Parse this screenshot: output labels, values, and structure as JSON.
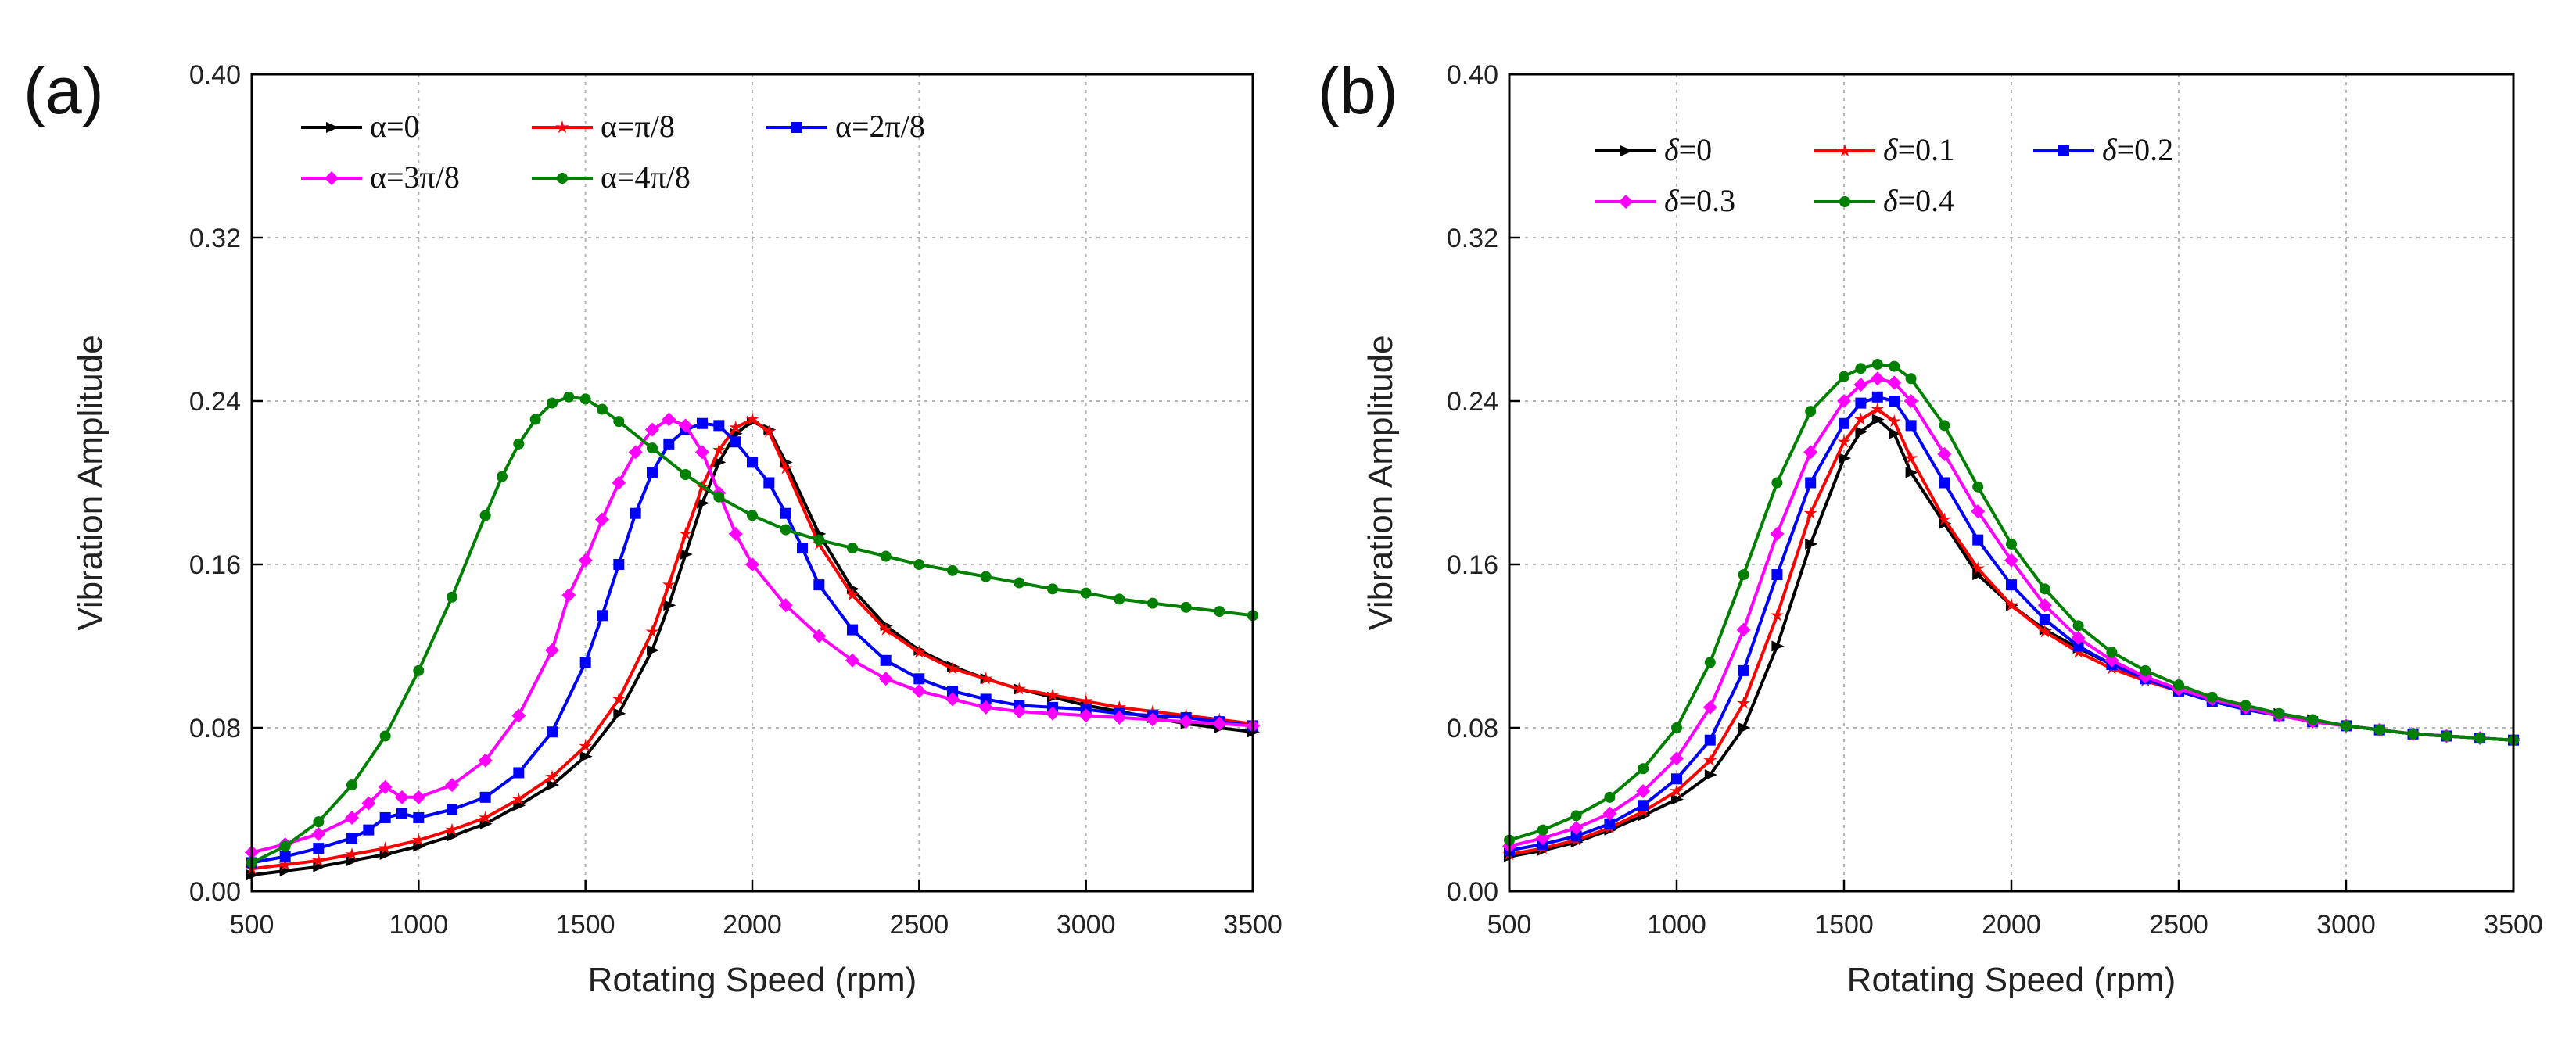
{
  "chart_data": [
    {
      "type": "line",
      "panel_label": "(a)",
      "xlabel": "Rotating Speed (rpm)",
      "ylabel": "Vibration Amplitude",
      "xlim": [
        500,
        3500
      ],
      "ylim": [
        0,
        0.4
      ],
      "xticks": [
        "500",
        "1000",
        "1500",
        "2000",
        "2500",
        "3000",
        "3500"
      ],
      "yticks": [
        "0.00",
        "0.08",
        "0.16",
        "0.24",
        "0.32",
        "0.40"
      ],
      "grid": true,
      "legend_position": "top-left",
      "series": [
        {
          "name": "α=0",
          "prefix": "α",
          "suffix": "=0",
          "color": "#000000",
          "marker": "triangle-right",
          "x": [
            500,
            600,
            700,
            800,
            900,
            1000,
            1100,
            1200,
            1300,
            1400,
            1500,
            1600,
            1700,
            1750,
            1800,
            1850,
            1900,
            1950,
            2000,
            2050,
            2100,
            2200,
            2300,
            2400,
            2500,
            2600,
            2700,
            2800,
            2900,
            3000,
            3100,
            3200,
            3300,
            3400,
            3500
          ],
          "y": [
            0.008,
            0.01,
            0.012,
            0.015,
            0.018,
            0.022,
            0.027,
            0.033,
            0.042,
            0.052,
            0.066,
            0.087,
            0.118,
            0.14,
            0.165,
            0.19,
            0.21,
            0.224,
            0.23,
            0.226,
            0.21,
            0.175,
            0.148,
            0.13,
            0.118,
            0.11,
            0.104,
            0.099,
            0.095,
            0.091,
            0.088,
            0.085,
            0.082,
            0.08,
            0.078
          ]
        },
        {
          "name": "α=π/8",
          "prefix": "α",
          "suffix": "=π/8",
          "color": "#ff0000",
          "marker": "star",
          "x": [
            500,
            600,
            700,
            800,
            900,
            1000,
            1100,
            1200,
            1300,
            1400,
            1500,
            1600,
            1700,
            1750,
            1800,
            1850,
            1900,
            1950,
            2000,
            2050,
            2100,
            2200,
            2300,
            2400,
            2500,
            2600,
            2700,
            2800,
            2900,
            3000,
            3100,
            3200,
            3300,
            3400,
            3500
          ],
          "y": [
            0.011,
            0.013,
            0.015,
            0.018,
            0.021,
            0.025,
            0.03,
            0.036,
            0.045,
            0.056,
            0.071,
            0.094,
            0.127,
            0.15,
            0.175,
            0.198,
            0.216,
            0.227,
            0.231,
            0.225,
            0.207,
            0.17,
            0.145,
            0.128,
            0.117,
            0.109,
            0.104,
            0.099,
            0.096,
            0.093,
            0.09,
            0.088,
            0.086,
            0.084,
            0.082
          ]
        },
        {
          "name": "α=2π/8",
          "prefix": "α",
          "suffix": "=2π/8",
          "color": "#0000ff",
          "marker": "square",
          "x": [
            500,
            600,
            700,
            800,
            850,
            900,
            950,
            1000,
            1100,
            1200,
            1300,
            1400,
            1500,
            1550,
            1600,
            1650,
            1700,
            1750,
            1800,
            1850,
            1900,
            1950,
            2000,
            2050,
            2100,
            2150,
            2200,
            2300,
            2400,
            2500,
            2600,
            2700,
            2800,
            2900,
            3000,
            3100,
            3200,
            3300,
            3400,
            3500
          ],
          "y": [
            0.014,
            0.017,
            0.021,
            0.026,
            0.03,
            0.036,
            0.038,
            0.036,
            0.04,
            0.046,
            0.058,
            0.078,
            0.112,
            0.135,
            0.16,
            0.185,
            0.205,
            0.219,
            0.226,
            0.229,
            0.228,
            0.22,
            0.21,
            0.2,
            0.185,
            0.168,
            0.15,
            0.128,
            0.113,
            0.104,
            0.098,
            0.094,
            0.091,
            0.09,
            0.089,
            0.087,
            0.086,
            0.085,
            0.083,
            0.081
          ]
        },
        {
          "name": "α=3π/8",
          "prefix": "α",
          "suffix": "=3π/8",
          "color": "#ff00ff",
          "marker": "diamond",
          "x": [
            500,
            600,
            700,
            800,
            850,
            900,
            950,
            1000,
            1100,
            1200,
            1300,
            1400,
            1450,
            1500,
            1550,
            1600,
            1650,
            1700,
            1750,
            1800,
            1850,
            1900,
            1950,
            2000,
            2100,
            2200,
            2300,
            2400,
            2500,
            2600,
            2700,
            2800,
            2900,
            3000,
            3100,
            3200,
            3300,
            3400,
            3500
          ],
          "y": [
            0.019,
            0.023,
            0.028,
            0.036,
            0.043,
            0.051,
            0.046,
            0.046,
            0.052,
            0.064,
            0.086,
            0.118,
            0.145,
            0.162,
            0.182,
            0.2,
            0.215,
            0.226,
            0.231,
            0.228,
            0.215,
            0.195,
            0.175,
            0.16,
            0.14,
            0.125,
            0.113,
            0.104,
            0.098,
            0.094,
            0.09,
            0.088,
            0.087,
            0.086,
            0.085,
            0.084,
            0.083,
            0.082,
            0.081
          ]
        },
        {
          "name": "α=4π/8",
          "prefix": "α",
          "suffix": "=4π/8",
          "color": "#008000",
          "marker": "circle",
          "x": [
            500,
            600,
            700,
            800,
            900,
            1000,
            1100,
            1200,
            1250,
            1300,
            1350,
            1400,
            1450,
            1500,
            1550,
            1600,
            1700,
            1800,
            1900,
            2000,
            2100,
            2200,
            2300,
            2400,
            2500,
            2600,
            2700,
            2800,
            2900,
            3000,
            3100,
            3200,
            3300,
            3400,
            3500
          ],
          "y": [
            0.014,
            0.022,
            0.034,
            0.052,
            0.076,
            0.108,
            0.144,
            0.184,
            0.203,
            0.219,
            0.231,
            0.239,
            0.242,
            0.241,
            0.236,
            0.23,
            0.217,
            0.204,
            0.193,
            0.184,
            0.177,
            0.172,
            0.168,
            0.164,
            0.16,
            0.157,
            0.154,
            0.151,
            0.148,
            0.146,
            0.143,
            0.141,
            0.139,
            0.137,
            0.135
          ]
        }
      ]
    },
    {
      "type": "line",
      "panel_label": "(b)",
      "xlabel": "Rotating Speed (rpm)",
      "ylabel": "Vibration Amplitude",
      "xlim": [
        500,
        3500
      ],
      "ylim": [
        0,
        0.4
      ],
      "xticks": [
        "500",
        "1000",
        "1500",
        "2000",
        "2500",
        "3000",
        "3500"
      ],
      "yticks": [
        "0.00",
        "0.08",
        "0.16",
        "0.24",
        "0.32",
        "0.40"
      ],
      "grid": true,
      "legend_position": "top-left",
      "series": [
        {
          "name": "δ=0",
          "prefix": "δ",
          "suffix": "=0",
          "color": "#000000",
          "marker": "triangle-right",
          "x": [
            500,
            600,
            700,
            800,
            900,
            1000,
            1100,
            1200,
            1300,
            1400,
            1500,
            1550,
            1600,
            1650,
            1700,
            1800,
            1900,
            2000,
            2100,
            2200,
            2300,
            2400,
            2500,
            2600,
            2700,
            2800,
            2900,
            3000,
            3100,
            3200,
            3300,
            3400,
            3500
          ],
          "y": [
            0.017,
            0.02,
            0.024,
            0.03,
            0.037,
            0.045,
            0.057,
            0.08,
            0.12,
            0.17,
            0.212,
            0.225,
            0.231,
            0.224,
            0.205,
            0.18,
            0.155,
            0.14,
            0.128,
            0.119,
            0.111,
            0.104,
            0.099,
            0.094,
            0.09,
            0.087,
            0.084,
            0.081,
            0.079,
            0.077,
            0.076,
            0.075,
            0.074
          ]
        },
        {
          "name": "δ=0.1",
          "prefix": "δ",
          "suffix": "=0.1",
          "color": "#ff0000",
          "marker": "star",
          "x": [
            500,
            600,
            700,
            800,
            900,
            1000,
            1100,
            1200,
            1300,
            1400,
            1500,
            1550,
            1600,
            1650,
            1700,
            1800,
            1900,
            2000,
            2100,
            2200,
            2300,
            2400,
            2500,
            2600,
            2700,
            2800,
            2900,
            3000,
            3100,
            3200,
            3300,
            3400,
            3500
          ],
          "y": [
            0.018,
            0.021,
            0.025,
            0.031,
            0.039,
            0.049,
            0.064,
            0.092,
            0.135,
            0.185,
            0.22,
            0.231,
            0.236,
            0.23,
            0.212,
            0.182,
            0.158,
            0.14,
            0.127,
            0.117,
            0.109,
            0.103,
            0.098,
            0.093,
            0.089,
            0.086,
            0.083,
            0.081,
            0.079,
            0.077,
            0.076,
            0.075,
            0.074
          ]
        },
        {
          "name": "δ=0.2",
          "prefix": "δ",
          "suffix": "=0.2",
          "color": "#0000ff",
          "marker": "square",
          "x": [
            500,
            600,
            700,
            800,
            900,
            1000,
            1100,
            1200,
            1300,
            1400,
            1500,
            1550,
            1600,
            1650,
            1700,
            1800,
            1900,
            2000,
            2100,
            2200,
            2300,
            2400,
            2500,
            2600,
            2700,
            2800,
            2900,
            3000,
            3100,
            3200,
            3300,
            3400,
            3500
          ],
          "y": [
            0.02,
            0.023,
            0.027,
            0.033,
            0.042,
            0.055,
            0.074,
            0.108,
            0.155,
            0.2,
            0.229,
            0.239,
            0.242,
            0.24,
            0.228,
            0.2,
            0.172,
            0.15,
            0.133,
            0.12,
            0.111,
            0.104,
            0.098,
            0.093,
            0.089,
            0.086,
            0.083,
            0.081,
            0.079,
            0.077,
            0.076,
            0.075,
            0.074
          ]
        },
        {
          "name": "δ=0.3",
          "prefix": "δ",
          "suffix": "=0.3",
          "color": "#ff00ff",
          "marker": "diamond",
          "x": [
            500,
            600,
            700,
            800,
            900,
            1000,
            1100,
            1200,
            1300,
            1400,
            1500,
            1550,
            1600,
            1650,
            1700,
            1800,
            1900,
            2000,
            2100,
            2200,
            2300,
            2400,
            2500,
            2600,
            2700,
            2800,
            2900,
            3000,
            3100,
            3200,
            3300,
            3400,
            3500
          ],
          "y": [
            0.022,
            0.026,
            0.031,
            0.038,
            0.049,
            0.065,
            0.09,
            0.128,
            0.175,
            0.215,
            0.24,
            0.248,
            0.251,
            0.249,
            0.24,
            0.214,
            0.186,
            0.162,
            0.14,
            0.124,
            0.113,
            0.105,
            0.099,
            0.094,
            0.09,
            0.086,
            0.083,
            0.081,
            0.079,
            0.077,
            0.076,
            0.075,
            0.074
          ]
        },
        {
          "name": "δ=0.4",
          "prefix": "δ",
          "suffix": "=0.4",
          "color": "#008000",
          "marker": "circle",
          "x": [
            500,
            600,
            700,
            800,
            900,
            1000,
            1100,
            1200,
            1300,
            1400,
            1500,
            1550,
            1600,
            1650,
            1700,
            1800,
            1900,
            2000,
            2100,
            2200,
            2300,
            2400,
            2500,
            2600,
            2700,
            2800,
            2900,
            3000,
            3100,
            3200,
            3300,
            3400,
            3500
          ],
          "y": [
            0.025,
            0.03,
            0.037,
            0.046,
            0.06,
            0.08,
            0.112,
            0.155,
            0.2,
            0.235,
            0.252,
            0.256,
            0.258,
            0.257,
            0.251,
            0.228,
            0.198,
            0.17,
            0.148,
            0.13,
            0.117,
            0.108,
            0.101,
            0.095,
            0.091,
            0.087,
            0.084,
            0.081,
            0.079,
            0.077,
            0.076,
            0.075,
            0.074
          ]
        }
      ]
    }
  ]
}
